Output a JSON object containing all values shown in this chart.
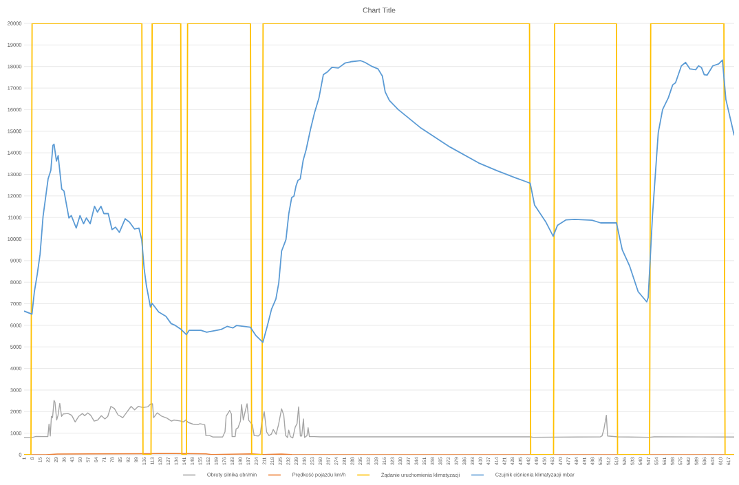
{
  "chart_data": {
    "type": "line",
    "title": "Chart Title",
    "xlim": [
      1,
      622
    ],
    "ylim": [
      0,
      20000
    ],
    "xticks": [
      1,
      8,
      15,
      22,
      29,
      36,
      43,
      50,
      57,
      64,
      71,
      78,
      85,
      92,
      99,
      106,
      113,
      120,
      127,
      134,
      141,
      148,
      155,
      162,
      169,
      176,
      183,
      190,
      197,
      204,
      211,
      218,
      225,
      232,
      239,
      246,
      253,
      260,
      267,
      274,
      281,
      288,
      295,
      302,
      309,
      316,
      323,
      330,
      337,
      344,
      351,
      358,
      365,
      372,
      379,
      386,
      393,
      400,
      407,
      414,
      421,
      428,
      435,
      442,
      449,
      456,
      463,
      470,
      477,
      484,
      491,
      498,
      505,
      512,
      519,
      526,
      533,
      540,
      547,
      554,
      561,
      568,
      575,
      582,
      589,
      596,
      603,
      610,
      617
    ],
    "yticks": [
      0,
      1000,
      2000,
      3000,
      4000,
      5000,
      6000,
      7000,
      8000,
      9000,
      10000,
      11000,
      12000,
      13000,
      14000,
      15000,
      16000,
      17000,
      18000,
      19000,
      20000
    ],
    "grid": "y",
    "legend": "bottom",
    "series": [
      {
        "name": "Obroty silnika obr/min",
        "color": "#a5a5a5",
        "x": [
          1,
          8.3,
          11.4,
          21.8,
          22.8,
          23.9,
          24.9,
          25.9,
          27.2,
          28,
          29.5,
          30.7,
          32.2,
          33.8,
          35.3,
          39.5,
          42.6,
          45.7,
          48.8,
          52,
          54,
          56.7,
          59.2,
          62.3,
          65.4,
          68.6,
          71.7,
          74.2,
          76.9,
          80,
          83.1,
          87.3,
          90.4,
          94.6,
          97.7,
          100.8,
          105,
          109.1,
          111.6,
          113.3,
          114.3,
          117.4,
          121.6,
          125.7,
          129.9,
          132,
          138.2,
          140.3,
          142.4,
          144.5,
          148.6,
          152.8,
          154.8,
          159,
          160,
          163.2,
          166.3,
          174.6,
          176.7,
          177.7,
          180.8,
          182.3,
          182.9,
          185.6,
          186.4,
          188.1,
          190.2,
          191.2,
          192.7,
          194.3,
          196,
          197.5,
          200.6,
          202.2,
          205.8,
          207.5,
          208.9,
          211,
          213.1,
          215.1,
          217.2,
          218.9,
          221.4,
          223.5,
          226.2,
          228.1,
          229.7,
          231.4,
          232.4,
          233.9,
          236,
          238.1,
          239.7,
          241.1,
          242.6,
          243.8,
          245.3,
          246.3,
          248.4,
          249.4,
          250.5,
          254.6,
          260,
          444,
          446,
          505,
          506.4,
          508.1,
          510.2,
          511.3,
          520,
          548,
          552,
          622
        ],
        "values": [
          800,
          800,
          850,
          840,
          1420,
          870,
          1780,
          1720,
          2520,
          2440,
          1610,
          1830,
          2380,
          1780,
          1890,
          1910,
          1830,
          1520,
          1780,
          1910,
          1810,
          1940,
          1830,
          1560,
          1610,
          1810,
          1660,
          1780,
          2240,
          2140,
          1850,
          1720,
          1940,
          2240,
          2080,
          2240,
          2190,
          2220,
          2350,
          2360,
          1720,
          1940,
          1780,
          1700,
          1560,
          1610,
          1560,
          1520,
          1610,
          1500,
          1420,
          1390,
          1440,
          1390,
          890,
          890,
          820,
          820,
          1060,
          1780,
          2050,
          1890,
          840,
          840,
          1190,
          1250,
          1560,
          2330,
          1610,
          2000,
          2360,
          1590,
          1390,
          890,
          870,
          950,
          1500,
          2000,
          1060,
          890,
          950,
          1170,
          950,
          1390,
          2130,
          1830,
          890,
          800,
          1140,
          840,
          780,
          1280,
          1440,
          2220,
          870,
          870,
          1660,
          800,
          890,
          1250,
          840,
          840,
          830,
          830,
          810,
          830,
          870,
          1190,
          1830,
          870,
          830,
          810,
          830,
          820
        ]
      },
      {
        "name": "Prędkość pojazdu km/h",
        "color": "#ed7d31",
        "x": [
          1,
          20,
          30,
          60,
          110,
          118,
          150,
          160,
          165,
          200,
          210,
          226,
          235,
          260,
          622
        ],
        "values": [
          0,
          0,
          30,
          40,
          50,
          60,
          50,
          40,
          10,
          40,
          10,
          30,
          10,
          0,
          0
        ]
      },
      {
        "name": "Żądanie uruchomienia klimatyzacji",
        "color": "#ffc000",
        "x": [
          1,
          7,
          8,
          104,
          105,
          112,
          113,
          138,
          139,
          143,
          144,
          199,
          200,
          209,
          210,
          443,
          444,
          464,
          465,
          519,
          520,
          548,
          549,
          613,
          614,
          622
        ],
        "values": [
          0,
          0,
          20000,
          20000,
          0,
          0,
          20000,
          20000,
          0,
          0,
          20000,
          20000,
          0,
          0,
          20000,
          20000,
          0,
          0,
          20000,
          20000,
          0,
          0,
          20000,
          20000,
          0,
          0
        ]
      },
      {
        "name": "Czujnik ciśnienia klimatyzacji mbar",
        "color": "#5b9bd5",
        "x": [
          1,
          7.9,
          10,
          12.5,
          15,
          17.6,
          20,
          22,
          24.4,
          26.2,
          27.2,
          29.3,
          30.8,
          33.9,
          35.9,
          40.2,
          42.3,
          46.6,
          49.9,
          53,
          55.5,
          58.8,
          62.6,
          65.2,
          68.2,
          70.8,
          74.6,
          77.9,
          81,
          84.3,
          89.4,
          93.2,
          97.5,
          101.4,
          103.9,
          106,
          108,
          111.5,
          113,
          118.7,
          125,
          129.6,
          132.7,
          138.3,
          142.9,
          145.4,
          155.6,
          160.7,
          173.4,
          178.5,
          183.6,
          186.7,
          198.9,
          203.5,
          209.8,
          213.6,
          217.4,
          221.2,
          223.7,
          226.2,
          230,
          232.5,
          235,
          237,
          238.8,
          240.5,
          242.5,
          245.1,
          247.6,
          251.4,
          255.1,
          258.9,
          262.7,
          266.5,
          270.2,
          275.8,
          281.6,
          287.8,
          295.4,
          299.2,
          305.4,
          310.5,
          314.3,
          316.8,
          320.5,
          328.1,
          348.2,
          373.4,
          398.5,
          414.6,
          429.7,
          443.6,
          447.4,
          452.4,
          457.4,
          463.7,
          467.5,
          475,
          482.6,
          497.7,
          505.2,
          519,
          524.1,
          530.4,
          538,
          545.5,
          546.8,
          550.5,
          555.6,
          559.4,
          564.4,
          568.2,
          570.7,
          575.8,
          579.5,
          583.3,
          588.3,
          590.8,
          593.3,
          595.8,
          598.3,
          603.3,
          608.4,
          611.7,
          614.7,
          622
        ],
        "values": [
          6660,
          6520,
          7560,
          8360,
          9300,
          11050,
          12000,
          12790,
          13190,
          14340,
          14400,
          13620,
          13870,
          12320,
          12230,
          10980,
          11090,
          10510,
          11090,
          10710,
          10980,
          10710,
          11520,
          11250,
          11520,
          11180,
          11180,
          10440,
          10550,
          10310,
          10940,
          10780,
          10470,
          10510,
          9970,
          8630,
          7830,
          6850,
          7020,
          6620,
          6420,
          6080,
          6010,
          5810,
          5570,
          5770,
          5770,
          5680,
          5810,
          5950,
          5880,
          5990,
          5910,
          5540,
          5210,
          5950,
          6750,
          7220,
          7960,
          9440,
          9970,
          11180,
          11920,
          11990,
          12460,
          12720,
          12790,
          13660,
          14130,
          15070,
          15880,
          16550,
          17620,
          17760,
          17960,
          17930,
          18160,
          18230,
          18270,
          18190,
          18000,
          17890,
          17560,
          16820,
          16420,
          16010,
          15140,
          14270,
          13530,
          13170,
          12860,
          12590,
          11580,
          11180,
          10780,
          10130,
          10640,
          10890,
          10910,
          10870,
          10750,
          10750,
          9500,
          8770,
          7560,
          7090,
          7290,
          11050,
          14940,
          16010,
          16550,
          17150,
          17250,
          18030,
          18190,
          17890,
          17850,
          18030,
          17960,
          17620,
          17600,
          18030,
          18120,
          18300,
          16480,
          14810
        ]
      }
    ]
  }
}
